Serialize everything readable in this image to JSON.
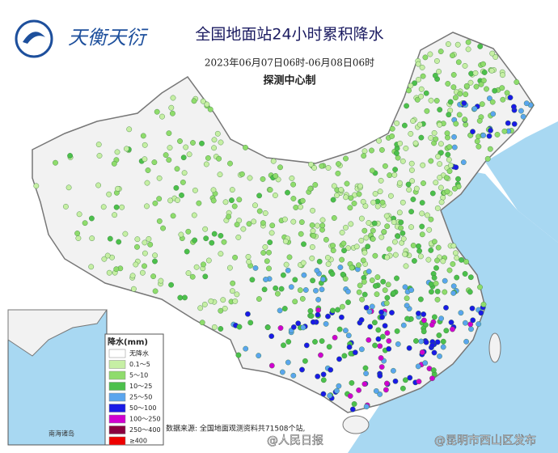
{
  "logo": {
    "text": "天衡天衍"
  },
  "header": {
    "title": "全国地面站24小时累积降水",
    "period": "2023年06月07日06时-06月08日06时",
    "producer": "探测中心制"
  },
  "legend": {
    "title": "降水(mm)",
    "items": [
      {
        "label": "无降水",
        "color": "#ffffff"
      },
      {
        "label": "0.1～5",
        "color": "#c6efa4"
      },
      {
        "label": "5～10",
        "color": "#8fdc6c"
      },
      {
        "label": "10～25",
        "color": "#4cc04c"
      },
      {
        "label": "25～50",
        "color": "#5aa5ee"
      },
      {
        "label": "50～100",
        "color": "#1a1ae6"
      },
      {
        "label": "100～250",
        "color": "#d000d0"
      },
      {
        "label": "250～400",
        "color": "#8a0040"
      },
      {
        "label": "≥400",
        "color": "#ee0000"
      }
    ]
  },
  "source": {
    "text": "数据来源: 全国地面观测资料共71508个站,"
  },
  "inset": {
    "label": "南海诸岛"
  },
  "watermarks": [
    "@人民日报",
    "@昆明市西山区发布"
  ]
}
